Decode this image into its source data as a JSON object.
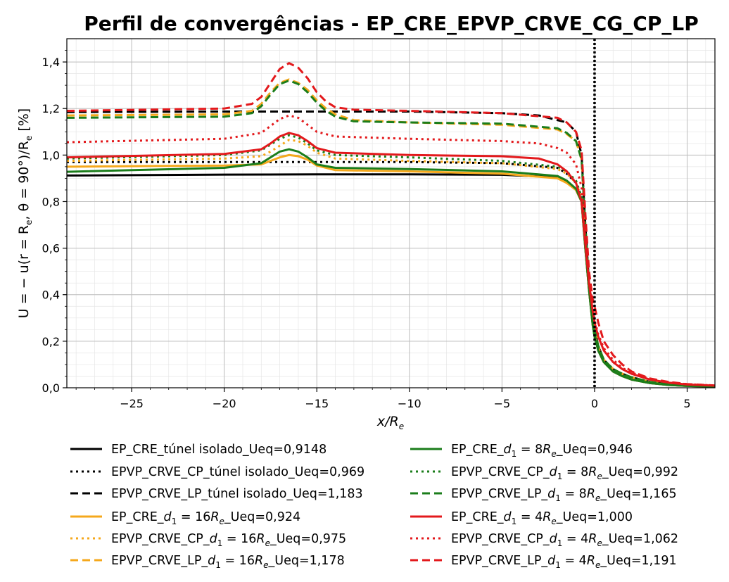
{
  "chart_data": {
    "type": "line",
    "title": "Perfil de convergências - EP_CRE_EPVP_CRVE_CG_CP_LP",
    "xlabel": {
      "pre": "x/R",
      "sub": "e"
    },
    "ylabel": {
      "p1": "U = − u(r = R",
      "s1": "e",
      "p2": ", θ = 90°)/R",
      "s2": "e",
      "p3": " [%]"
    },
    "xlim": [
      -28.5,
      6.5
    ],
    "ylim": [
      0,
      1.5
    ],
    "x_ticks": [
      -25,
      -20,
      -15,
      -10,
      -5,
      0,
      5
    ],
    "x_tick_labels": [
      "−25",
      "−20",
      "−15",
      "−10",
      "−5",
      "0",
      "5"
    ],
    "y_ticks": [
      0,
      0.2,
      0.4,
      0.6,
      0.8,
      1.0,
      1.2,
      1.4
    ],
    "y_tick_labels": [
      "0,0",
      "0,2",
      "0,4",
      "0,6",
      "0,8",
      "1,0",
      "1,2",
      "1,4"
    ],
    "grid": true,
    "minor_grid": true,
    "vertical_marker": {
      "x": 0,
      "style": "dotted",
      "color": "#000000"
    },
    "legend_placement": "below",
    "series": [
      {
        "key": "s1",
        "legend": [
          "EP_CRE_túnel isolado_Ueq=0,9148"
        ],
        "color": "#000000",
        "dash": "solid",
        "x": [
          -28.5,
          -20,
          -15,
          -10,
          -5,
          -2,
          -1.5,
          -1,
          -0.7,
          -0.5,
          -0.3,
          -0.1,
          0,
          0.2,
          0.5,
          1,
          1.5,
          2,
          3,
          4,
          5,
          6.5
        ],
        "y": [
          0.912,
          0.916,
          0.917,
          0.917,
          0.915,
          0.905,
          0.885,
          0.85,
          0.8,
          0.6,
          0.42,
          0.27,
          0.22,
          0.16,
          0.11,
          0.07,
          0.05,
          0.035,
          0.02,
          0.012,
          0.008,
          0.005
        ]
      },
      {
        "key": "s2",
        "legend": [
          "EPVP_CRVE_CP_túnel isolado_Ueq=0,969"
        ],
        "color": "#000000",
        "dash": "dot",
        "x": [
          -28.5,
          -20,
          -15,
          -10,
          -5,
          -2,
          -1.5,
          -1,
          -0.7,
          -0.5,
          -0.3,
          -0.1,
          0,
          0.2,
          0.5,
          1,
          1.5,
          2,
          3,
          4,
          5,
          6.5
        ],
        "y": [
          0.97,
          0.97,
          0.97,
          0.97,
          0.965,
          0.945,
          0.92,
          0.88,
          0.82,
          0.62,
          0.43,
          0.28,
          0.23,
          0.17,
          0.12,
          0.08,
          0.055,
          0.04,
          0.022,
          0.013,
          0.009,
          0.006
        ]
      },
      {
        "key": "s3",
        "legend": [
          "EPVP_CRVE_LP_túnel isolado_Ueq=1,183"
        ],
        "color": "#000000",
        "dash": "dash",
        "x": [
          -28.5,
          -20,
          -10,
          -5,
          -3,
          -1.5,
          -1,
          -0.7,
          -0.5,
          -0.3,
          -0.1,
          0,
          0.2,
          0.5,
          1,
          1.5,
          2,
          3,
          4,
          5,
          6.5
        ],
        "y": [
          1.185,
          1.187,
          1.187,
          1.18,
          1.17,
          1.14,
          1.1,
          1.0,
          0.7,
          0.45,
          0.3,
          0.25,
          0.18,
          0.12,
          0.08,
          0.06,
          0.045,
          0.025,
          0.015,
          0.01,
          0.007
        ]
      },
      {
        "key": "s4",
        "legend": [
          "EP_CRE_",
          "d",
          "1",
          " = 16",
          "R",
          "e",
          "_Ueq=0,924"
        ],
        "color": "#f5a81c",
        "dash": "solid",
        "x": [
          -28.5,
          -20,
          -18,
          -17.5,
          -17,
          -16.5,
          -16,
          -15.5,
          -15,
          -14,
          -10,
          -5,
          -2,
          -1.5,
          -1,
          -0.7,
          -0.5,
          -0.3,
          -0.1,
          0,
          0.2,
          0.5,
          1,
          1.5,
          2,
          3,
          4,
          5,
          6.5
        ],
        "y": [
          0.95,
          0.955,
          0.96,
          0.975,
          0.99,
          1.0,
          0.995,
          0.98,
          0.955,
          0.935,
          0.93,
          0.92,
          0.9,
          0.88,
          0.85,
          0.8,
          0.6,
          0.42,
          0.27,
          0.22,
          0.16,
          0.11,
          0.07,
          0.05,
          0.035,
          0.02,
          0.012,
          0.008,
          0.005
        ]
      },
      {
        "key": "s5",
        "legend": [
          "EPVP_CRVE_CP_",
          "d",
          "1",
          " = 16",
          "R",
          "e",
          "_Ueq=0,975"
        ],
        "color": "#f5a81c",
        "dash": "dot",
        "x": [
          -28.5,
          -20,
          -18,
          -17.5,
          -17,
          -16.5,
          -16,
          -15.5,
          -15,
          -14,
          -10,
          -5,
          -2,
          -1.5,
          -1,
          -0.7,
          -0.5,
          -0.3,
          -0.1,
          0,
          0.2,
          0.5,
          1,
          1.5,
          2,
          3,
          4,
          5,
          6.5
        ],
        "y": [
          0.975,
          0.985,
          0.995,
          1.015,
          1.04,
          1.065,
          1.06,
          1.04,
          1.01,
          0.985,
          0.975,
          0.965,
          0.94,
          0.92,
          0.88,
          0.82,
          0.62,
          0.43,
          0.28,
          0.23,
          0.17,
          0.12,
          0.08,
          0.055,
          0.04,
          0.022,
          0.013,
          0.009,
          0.006
        ]
      },
      {
        "key": "s6",
        "legend": [
          "EPVP_CRVE_LP_",
          "d",
          "1",
          " = 16",
          "R",
          "e",
          "_Ueq=1,178"
        ],
        "color": "#f5a81c",
        "dash": "dash",
        "x": [
          -28.5,
          -20,
          -18.5,
          -18,
          -17.5,
          -17,
          -16.5,
          -16,
          -15.5,
          -15,
          -14.5,
          -14,
          -13,
          -10,
          -5,
          -2,
          -1.5,
          -1,
          -0.7,
          -0.5,
          -0.3,
          -0.1,
          0,
          0.2,
          0.5,
          1,
          1.5,
          2,
          3,
          4,
          5,
          6.5
        ],
        "y": [
          1.17,
          1.175,
          1.19,
          1.22,
          1.27,
          1.31,
          1.325,
          1.31,
          1.28,
          1.235,
          1.2,
          1.175,
          1.15,
          1.14,
          1.13,
          1.11,
          1.09,
          1.06,
          0.98,
          0.7,
          0.45,
          0.3,
          0.25,
          0.18,
          0.12,
          0.08,
          0.06,
          0.045,
          0.025,
          0.015,
          0.01,
          0.007
        ]
      },
      {
        "key": "s7",
        "legend": [
          "EP_CRE_",
          "d",
          "1",
          " = 8",
          "R",
          "e",
          "_Ueq=0,946"
        ],
        "color": "#1b7d1b",
        "dash": "solid",
        "x": [
          -28.5,
          -20,
          -18,
          -17.5,
          -17,
          -16.5,
          -16,
          -15.5,
          -15,
          -14,
          -10,
          -5,
          -2,
          -1.5,
          -1,
          -0.7,
          -0.5,
          -0.3,
          -0.1,
          0,
          0.2,
          0.5,
          1,
          1.5,
          2,
          3,
          4,
          5,
          6.5
        ],
        "y": [
          0.928,
          0.945,
          0.965,
          0.99,
          1.015,
          1.025,
          1.015,
          0.99,
          0.96,
          0.945,
          0.94,
          0.93,
          0.91,
          0.89,
          0.855,
          0.8,
          0.6,
          0.42,
          0.27,
          0.22,
          0.16,
          0.11,
          0.07,
          0.05,
          0.035,
          0.02,
          0.012,
          0.008,
          0.005
        ]
      },
      {
        "key": "s8",
        "legend": [
          "EPVP_CRVE_CP_",
          "d",
          "1",
          " = 8",
          "R",
          "e",
          "_Ueq=0,992"
        ],
        "color": "#1b7d1b",
        "dash": "dot",
        "x": [
          -28.5,
          -20,
          -18,
          -17.5,
          -17,
          -16.5,
          -16,
          -15.5,
          -15,
          -14,
          -10,
          -5,
          -2,
          -1.5,
          -1,
          -0.7,
          -0.5,
          -0.3,
          -0.1,
          0,
          0.2,
          0.5,
          1,
          1.5,
          2,
          3,
          4,
          5,
          6.5
        ],
        "y": [
          0.985,
          1.0,
          1.02,
          1.045,
          1.07,
          1.085,
          1.075,
          1.05,
          1.02,
          1.0,
          0.99,
          0.975,
          0.95,
          0.93,
          0.89,
          0.82,
          0.62,
          0.43,
          0.28,
          0.23,
          0.17,
          0.12,
          0.08,
          0.055,
          0.04,
          0.022,
          0.013,
          0.009,
          0.006
        ]
      },
      {
        "key": "s9",
        "legend": [
          "EPVP_CRVE_LP_",
          "d",
          "1",
          " = 8",
          "R",
          "e",
          "_Ueq=1,165"
        ],
        "color": "#1b7d1b",
        "dash": "dash",
        "x": [
          -28.5,
          -20,
          -18.5,
          -18,
          -17.5,
          -17,
          -16.5,
          -16,
          -15.5,
          -15,
          -14.5,
          -14,
          -13,
          -10,
          -5,
          -2,
          -1.5,
          -1,
          -0.7,
          -0.5,
          -0.3,
          -0.1,
          0,
          0.2,
          0.5,
          1,
          1.5,
          2,
          3,
          4,
          5,
          6.5
        ],
        "y": [
          1.16,
          1.165,
          1.18,
          1.21,
          1.26,
          1.305,
          1.32,
          1.305,
          1.27,
          1.225,
          1.19,
          1.165,
          1.145,
          1.14,
          1.135,
          1.115,
          1.095,
          1.06,
          0.98,
          0.7,
          0.45,
          0.3,
          0.25,
          0.18,
          0.12,
          0.08,
          0.06,
          0.045,
          0.025,
          0.015,
          0.01,
          0.007
        ]
      },
      {
        "key": "s10",
        "legend": [
          "EP_CRE_",
          "d",
          "1",
          " = 4",
          "R",
          "e",
          "_Ueq=1,000"
        ],
        "color": "#e3191c",
        "dash": "solid",
        "x": [
          -28.5,
          -20,
          -18,
          -17.5,
          -17,
          -16.5,
          -16,
          -15.5,
          -15,
          -14,
          -10,
          -5,
          -3,
          -2,
          -1.5,
          -1,
          -0.7,
          -0.5,
          -0.3,
          -0.1,
          0,
          0.2,
          0.5,
          1,
          1.5,
          2,
          3,
          4,
          5,
          6.5
        ],
        "y": [
          0.99,
          1.005,
          1.025,
          1.05,
          1.08,
          1.095,
          1.085,
          1.06,
          1.03,
          1.01,
          1.0,
          0.995,
          0.985,
          0.96,
          0.93,
          0.88,
          0.8,
          0.62,
          0.45,
          0.33,
          0.28,
          0.22,
          0.16,
          0.11,
          0.08,
          0.06,
          0.035,
          0.022,
          0.014,
          0.009
        ]
      },
      {
        "key": "s11",
        "legend": [
          "EPVP_CRVE_CP_",
          "d",
          "1",
          " = 4",
          "R",
          "e",
          "_Ueq=1,062"
        ],
        "color": "#e3191c",
        "dash": "dot",
        "x": [
          -28.5,
          -20,
          -18,
          -17.5,
          -17,
          -16.5,
          -16,
          -15.5,
          -15,
          -14,
          -10,
          -5,
          -3,
          -2,
          -1.5,
          -1,
          -0.7,
          -0.5,
          -0.3,
          -0.1,
          0,
          0.2,
          0.5,
          1,
          1.5,
          2,
          3,
          4,
          5,
          6.5
        ],
        "y": [
          1.055,
          1.07,
          1.095,
          1.125,
          1.155,
          1.17,
          1.16,
          1.13,
          1.1,
          1.08,
          1.07,
          1.06,
          1.05,
          1.03,
          1.01,
          0.96,
          0.86,
          0.64,
          0.46,
          0.34,
          0.29,
          0.23,
          0.17,
          0.12,
          0.085,
          0.065,
          0.038,
          0.024,
          0.015,
          0.01
        ]
      },
      {
        "key": "s12",
        "legend": [
          "EPVP_CRVE_LP_",
          "d",
          "1",
          " = 4",
          "R",
          "e",
          "_Ueq=1,191"
        ],
        "color": "#e3191c",
        "dash": "dash",
        "x": [
          -28.5,
          -20,
          -18.5,
          -18,
          -17.5,
          -17,
          -16.5,
          -16,
          -15.5,
          -15,
          -14.5,
          -14,
          -13,
          -10,
          -5,
          -2,
          -1.5,
          -1,
          -0.7,
          -0.5,
          -0.3,
          -0.1,
          0,
          0.2,
          0.5,
          1,
          1.5,
          2,
          3,
          4,
          5,
          6.5
        ],
        "y": [
          1.19,
          1.2,
          1.22,
          1.25,
          1.31,
          1.37,
          1.395,
          1.375,
          1.33,
          1.27,
          1.23,
          1.205,
          1.195,
          1.19,
          1.18,
          1.16,
          1.14,
          1.1,
          1.02,
          0.75,
          0.5,
          0.38,
          0.35,
          0.28,
          0.2,
          0.14,
          0.1,
          0.07,
          0.04,
          0.025,
          0.016,
          0.01
        ]
      }
    ]
  }
}
